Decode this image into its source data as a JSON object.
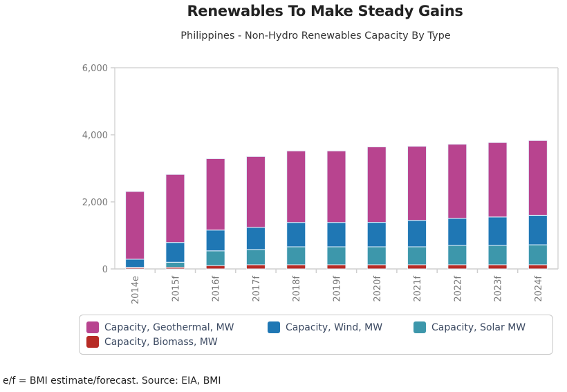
{
  "title": "Renewables To Make Steady Gains",
  "subtitle": "Philippines - Non-Hydro Renewables Capacity By Type",
  "footer": "e/f = BMI estimate/forecast. Source: EIA, BMI",
  "colors": {
    "geothermal": "#b8448f",
    "wind": "#1f77b4",
    "solar": "#3d97ab",
    "biomass": "#b72b25"
  },
  "chart_data": {
    "type": "bar",
    "stacked": true,
    "title": "Renewables To Make Steady Gains",
    "subtitle": "Philippines - Non-Hydro Renewables Capacity By Type",
    "xlabel": "",
    "ylabel": "",
    "ylim": [
      0,
      6000
    ],
    "yticks": [
      0,
      2000,
      4000,
      6000
    ],
    "ytick_labels": [
      "0",
      "2,000",
      "4,000",
      "6,000"
    ],
    "grid": false,
    "legend_position": "bottom",
    "categories": [
      "2014e",
      "2015f",
      "2016f",
      "2017f",
      "2018f",
      "2019f",
      "2020f",
      "2021f",
      "2022f",
      "2023f",
      "2024f"
    ],
    "series": [
      {
        "name": "Capacity, Biomass, MW",
        "key": "biomass",
        "values": [
          40,
          50,
          100,
          125,
          125,
          125,
          125,
          125,
          125,
          125,
          125
        ]
      },
      {
        "name": "Capacity, Solar MW",
        "key": "solar",
        "values": [
          10,
          150,
          440,
          455,
          535,
          535,
          535,
          535,
          575,
          575,
          595
        ]
      },
      {
        "name": "Capacity, Wind, MW",
        "key": "wind",
        "values": [
          240,
          590,
          620,
          660,
          727,
          727,
          730,
          790,
          810,
          850,
          880
        ]
      },
      {
        "name": "Capacity, Geothermal, MW",
        "key": "geothermal",
        "values": [
          2020,
          2030,
          2130,
          2114,
          2133,
          2133,
          2250,
          2210,
          2210,
          2220,
          2230
        ]
      }
    ]
  },
  "legend": [
    {
      "label": "Capacity, Geothermal, MW",
      "key": "geothermal"
    },
    {
      "label": "Capacity, Wind, MW",
      "key": "wind"
    },
    {
      "label": "Capacity, Solar MW",
      "key": "solar"
    },
    {
      "label": "Capacity, Biomass, MW",
      "key": "biomass"
    }
  ]
}
